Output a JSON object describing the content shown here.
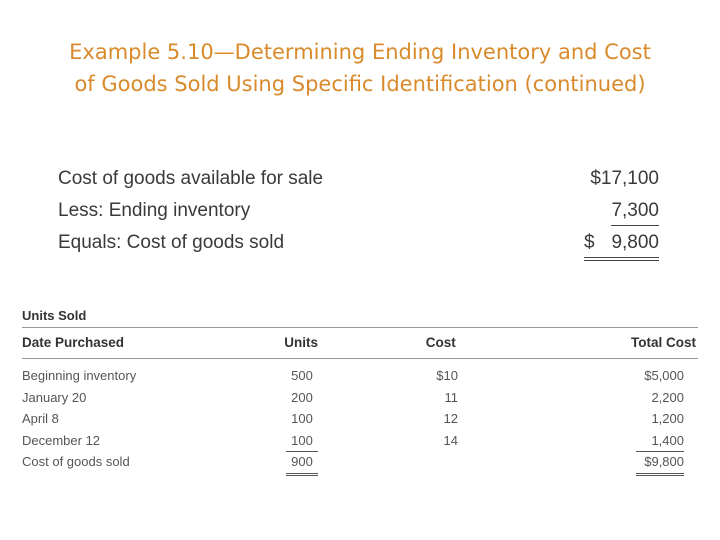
{
  "title_line1": "Example 5.10—Determining Ending Inventory and Cost",
  "title_line2": "of Goods Sold Using Specific Identification (continued)",
  "summary": {
    "rows": [
      {
        "label": "Cost of goods available for sale",
        "amount": "$17,100"
      },
      {
        "label": "Less: Ending inventory",
        "amount": "7,300"
      },
      {
        "label": "Equals: Cost of goods sold",
        "currency": "$",
        "amount": "9,800"
      }
    ]
  },
  "units_sold": {
    "heading": "Units Sold",
    "columns": [
      "Date Purchased",
      "Units",
      "Cost",
      "Total Cost"
    ],
    "rows": [
      {
        "date": "Beginning inventory",
        "units": "500",
        "cost": "$10",
        "total": "$5,000"
      },
      {
        "date": "January 20",
        "units": "200",
        "cost": "11",
        "total": "2,200"
      },
      {
        "date": "April 8",
        "units": "100",
        "cost": "12",
        "total": "1,200"
      },
      {
        "date": "December 12",
        "units": "100",
        "cost": "14",
        "total": "1,400"
      },
      {
        "date": "Cost of goods sold",
        "units": "900",
        "cost": "",
        "total": "$9,800"
      }
    ]
  }
}
